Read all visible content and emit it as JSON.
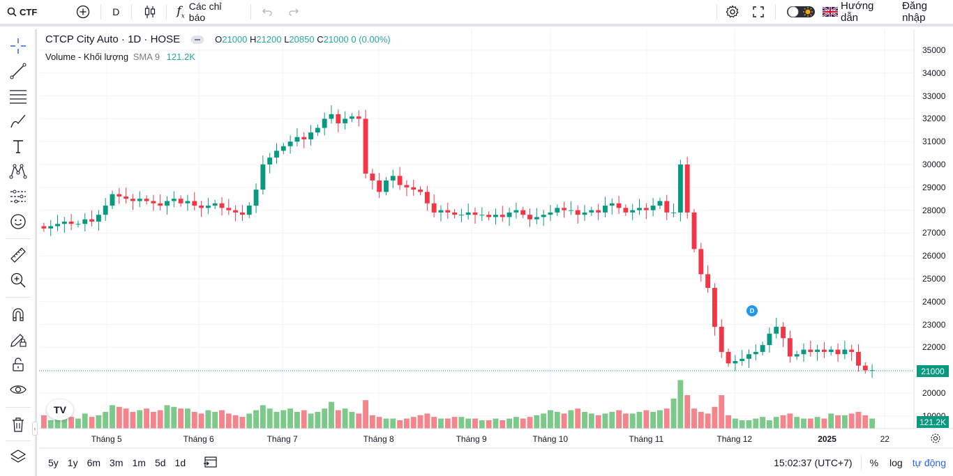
{
  "topbar": {
    "symbol": "CTF",
    "interval": "D",
    "indicators_label": "Các chỉ báo",
    "guide_label": "Hướng dẫn",
    "login_label": "Đăng nhập"
  },
  "legend": {
    "title": "CTCP City Auto · 1D · HOSE",
    "open_key": "O",
    "open": "21000",
    "high_key": "H",
    "high": "21200",
    "low_key": "L",
    "low": "20850",
    "close_key": "C",
    "close": "21000",
    "change": "0 (0.00%)",
    "volume_label": "Volume - Khối lượng",
    "sma_label": "SMA 9",
    "volume_value": "121.2K"
  },
  "price_tag": "21000",
  "volume_tag": "121.2K",
  "event_marker": "D",
  "watermark": "TV",
  "bottombar": {
    "ranges": [
      "5y",
      "1y",
      "6m",
      "3m",
      "1m",
      "5d",
      "1d"
    ],
    "time": "15:02:37 (UTC+7)",
    "percent_label": "%",
    "log_label": "log",
    "auto_label": "tự động"
  },
  "chart_data": {
    "type": "candlestick",
    "y_axis_labels": [
      "35000",
      "34000",
      "33000",
      "32000",
      "31000",
      "30000",
      "29000",
      "28000",
      "27000",
      "26000",
      "25000",
      "24000",
      "23000",
      "22000",
      "21000",
      "20000",
      "19000"
    ],
    "x_axis_labels": [
      "Tháng 5",
      "Tháng 6",
      "Tháng 7",
      "Tháng 8",
      "Tháng 9",
      "Tháng 10",
      "Tháng 11",
      "Tháng 12",
      "2025",
      "22"
    ],
    "ylim": [
      19000,
      35000
    ],
    "colors": {
      "up": "#089981",
      "down": "#f23645",
      "vol_up": "#7cc98a",
      "vol_down": "#f4858d"
    },
    "close_series": [
      27200,
      27300,
      27400,
      27500,
      27400,
      27400,
      27600,
      27500,
      27800,
      28200,
      28700,
      28600,
      28500,
      28400,
      28500,
      28400,
      28300,
      28200,
      28400,
      28500,
      28300,
      28400,
      28200,
      28100,
      28200,
      28300,
      28100,
      28000,
      27900,
      27800,
      28200,
      28900,
      30000,
      30300,
      30600,
      30800,
      31000,
      31200,
      31100,
      31400,
      31600,
      32000,
      32200,
      31800,
      32000,
      32100,
      32000,
      29600,
      29300,
      28800,
      29300,
      29500,
      29100,
      29000,
      28900,
      28800,
      28300,
      27900,
      28000,
      27900,
      27800,
      27800,
      27900,
      27800,
      27800,
      27700,
      27800,
      27700,
      27900,
      28000,
      27800,
      27600,
      27700,
      27800,
      27900,
      28100,
      28000,
      28000,
      27800,
      27900,
      28000,
      27900,
      28200,
      28300,
      28100,
      27900,
      28000,
      28100,
      28000,
      28200,
      28400,
      27900,
      27900,
      30000,
      27900,
      26300,
      25200,
      24600,
      22900,
      21800,
      21300,
      21400,
      21500,
      21700,
      21800,
      22100,
      22600,
      22900,
      22400,
      21600,
      21700,
      21900,
      21800,
      21900,
      21800,
      21900,
      21700,
      21900,
      21800,
      21200,
      21000,
      21000
    ],
    "volume_series": [
      8,
      5,
      9,
      6,
      7,
      6,
      9,
      7,
      8,
      10,
      14,
      13,
      12,
      10,
      11,
      12,
      10,
      11,
      14,
      13,
      12,
      12,
      10,
      9,
      11,
      10,
      11,
      9,
      8,
      7,
      9,
      11,
      14,
      12,
      10,
      11,
      12,
      10,
      11,
      9,
      10,
      12,
      16,
      11,
      12,
      10,
      9,
      17,
      8,
      7,
      6,
      6,
      5,
      6,
      7,
      8,
      9,
      7,
      6,
      6,
      7,
      7,
      6,
      6,
      5,
      5,
      6,
      5,
      6,
      7,
      6,
      7,
      8,
      9,
      11,
      10,
      9,
      11,
      12,
      10,
      9,
      8,
      9,
      10,
      11,
      9,
      9,
      10,
      11,
      10,
      11,
      12,
      18,
      29,
      20,
      12,
      10,
      9,
      13,
      20,
      8,
      6,
      5,
      5,
      6,
      7,
      5,
      7,
      8,
      9,
      7,
      6,
      6,
      7,
      6,
      9,
      8,
      8,
      9,
      10,
      8,
      6
    ]
  }
}
